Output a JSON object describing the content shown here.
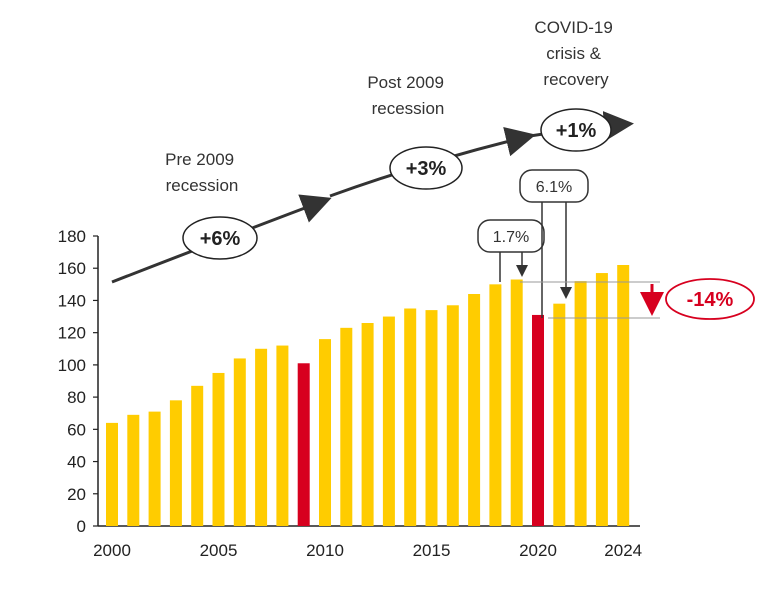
{
  "colors": {
    "bar": "#FFCC00",
    "highlight": "#D7001F",
    "arrow": "#333333",
    "axis": "#222222"
  },
  "chart_data": {
    "type": "bar",
    "categories": [
      "2000",
      "2001",
      "2002",
      "2003",
      "2004",
      "2005",
      "2006",
      "2007",
      "2008",
      "2009",
      "2010",
      "2011",
      "2012",
      "2013",
      "2014",
      "2015",
      "2016",
      "2017",
      "2018",
      "2019",
      "2020",
      "2021",
      "2022",
      "2023",
      "2024"
    ],
    "values": [
      64,
      69,
      71,
      78,
      87,
      95,
      104,
      110,
      112,
      101,
      116,
      123,
      126,
      130,
      135,
      134,
      137,
      144,
      150,
      153,
      131,
      138,
      152,
      157,
      162
    ],
    "highlight_years": [
      "2009",
      "2020"
    ],
    "ylim": [
      0,
      180
    ],
    "yticks": [
      "0",
      "20",
      "40",
      "60",
      "80",
      "100",
      "120",
      "140",
      "160",
      "180"
    ],
    "xticks": [
      "2000",
      "2005",
      "2010",
      "2015",
      "2020",
      "2024"
    ],
    "phases": [
      {
        "label_lines": [
          "Pre 2009",
          "recession"
        ],
        "growth": "+6%"
      },
      {
        "label_lines": [
          "Post 2009",
          "recession"
        ],
        "growth": "+3%"
      },
      {
        "label_lines": [
          "COVID-19",
          "crisis &",
          "recovery"
        ],
        "growth": "+1%"
      }
    ],
    "callouts": [
      {
        "text": "1.7%"
      },
      {
        "text": "6.1%"
      }
    ],
    "drop": {
      "text": "-14%"
    }
  }
}
